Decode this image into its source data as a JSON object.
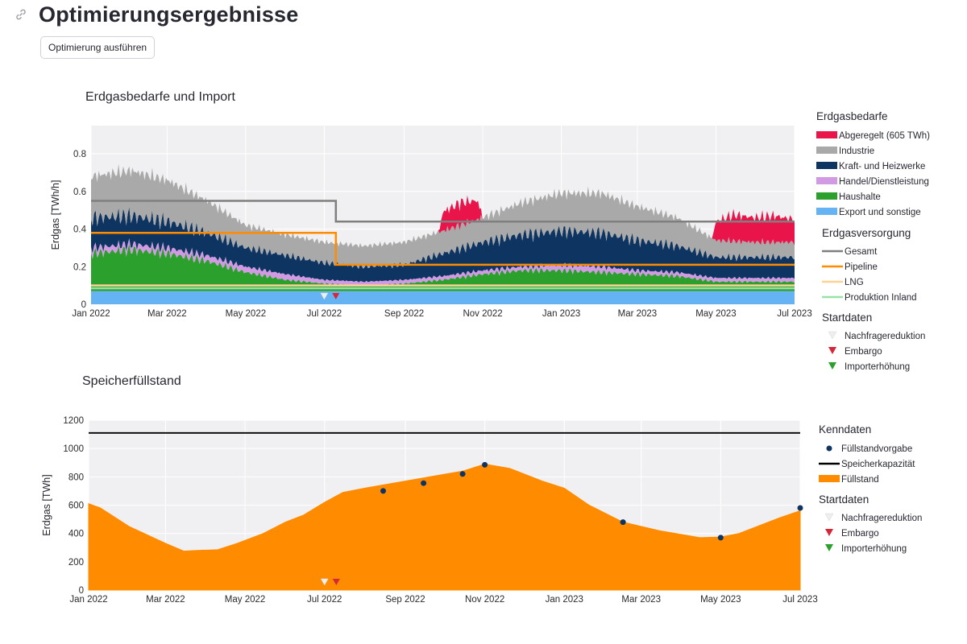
{
  "page": {
    "title": "Optimierungsergebnisse",
    "button_label": "Optimierung ausführen"
  },
  "chart_data": [
    {
      "type": "area",
      "title": "Erdgasbedarfe und Import",
      "ylabel": "Erdgas [TWh/h]",
      "xlabel": "",
      "x_ticks": [
        "Jan 2022",
        "Mar 2022",
        "May 2022",
        "Jul 2022",
        "Sep 2022",
        "Nov 2022",
        "Jan 2023",
        "Mar 2023",
        "May 2023",
        "Jul 2023"
      ],
      "x_range": [
        "2022-01-01",
        "2023-07-01"
      ],
      "y_ticks": [
        0,
        0.2,
        0.4,
        0.6,
        0.8
      ],
      "ylim": [
        0,
        0.95
      ],
      "grid": true,
      "legend_position": "right",
      "demand_group_title": "Erdgasbedarfe",
      "demand_series": [
        {
          "name": "Export und sonstige",
          "color": "#66b3f3",
          "x": [
            "2022-01-01",
            "2023-07-01"
          ],
          "values": [
            0.07,
            0.07
          ]
        },
        {
          "name": "Haushalte",
          "color": "#2ca02c",
          "x": [
            "2022-01-01",
            "2022-02-01",
            "2022-03-01",
            "2022-04-01",
            "2022-05-01",
            "2022-06-01",
            "2022-07-01",
            "2022-08-01",
            "2022-09-01",
            "2022-10-01",
            "2022-11-01",
            "2022-12-01",
            "2023-01-01",
            "2023-02-01",
            "2023-03-01",
            "2023-04-01",
            "2023-05-01",
            "2023-06-01",
            "2023-07-01"
          ],
          "values": [
            0.2,
            0.22,
            0.2,
            0.16,
            0.1,
            0.06,
            0.04,
            0.03,
            0.04,
            0.06,
            0.09,
            0.11,
            0.11,
            0.1,
            0.09,
            0.08,
            0.05,
            0.05,
            0.05
          ]
        },
        {
          "name": "Handel/Dienstleistung",
          "color": "#d19ae3",
          "x": [
            "2022-01-01",
            "2022-02-01",
            "2022-03-01",
            "2022-04-01",
            "2022-05-01",
            "2022-06-01",
            "2022-07-01",
            "2022-08-01",
            "2022-09-01",
            "2022-10-01",
            "2022-11-01",
            "2022-12-01",
            "2023-01-01",
            "2023-02-01",
            "2023-03-01",
            "2023-04-01",
            "2023-05-01",
            "2023-06-01",
            "2023-07-01"
          ],
          "values": [
            0.03,
            0.03,
            0.03,
            0.03,
            0.03,
            0.03,
            0.02,
            0.02,
            0.02,
            0.02,
            0.02,
            0.02,
            0.03,
            0.03,
            0.02,
            0.02,
            0.02,
            0.02,
            0.02
          ]
        },
        {
          "name": "Kraft- und Heizwerke",
          "color": "#0e3461",
          "x": [
            "2022-01-01",
            "2022-02-01",
            "2022-03-01",
            "2022-04-01",
            "2022-05-01",
            "2022-06-01",
            "2022-07-01",
            "2022-08-01",
            "2022-09-01",
            "2022-10-01",
            "2022-11-01",
            "2022-12-01",
            "2023-01-01",
            "2023-02-01",
            "2023-03-01",
            "2023-04-01",
            "2023-05-01",
            "2023-06-01",
            "2023-07-01"
          ],
          "values": [
            0.16,
            0.15,
            0.14,
            0.12,
            0.1,
            0.1,
            0.09,
            0.08,
            0.08,
            0.12,
            0.15,
            0.17,
            0.18,
            0.18,
            0.16,
            0.14,
            0.11,
            0.11,
            0.11
          ]
        },
        {
          "name": "Industrie",
          "color": "#a9a9a9",
          "x": [
            "2022-01-01",
            "2022-02-01",
            "2022-03-01",
            "2022-04-01",
            "2022-05-01",
            "2022-06-01",
            "2022-07-01",
            "2022-08-01",
            "2022-09-01",
            "2022-10-01",
            "2022-11-01",
            "2022-12-01",
            "2023-01-01",
            "2023-02-01",
            "2023-03-01",
            "2023-04-01",
            "2023-05-01",
            "2023-06-01",
            "2023-07-01"
          ],
          "values": [
            0.22,
            0.24,
            0.22,
            0.17,
            0.12,
            0.11,
            0.11,
            0.11,
            0.12,
            0.12,
            0.13,
            0.17,
            0.2,
            0.21,
            0.18,
            0.15,
            0.09,
            0.08,
            0.08
          ]
        },
        {
          "name": "Abgeregelt (605 TWh)",
          "color": "#e8144a",
          "x": [
            "2022-01-01",
            "2022-09-28",
            "2022-10-01",
            "2022-10-15",
            "2022-10-28",
            "2022-11-01",
            "2023-04-28",
            "2023-05-01",
            "2023-05-15",
            "2023-06-01",
            "2023-06-15",
            "2023-07-01"
          ],
          "values": [
            0,
            0,
            0.1,
            0.12,
            0.1,
            0,
            0,
            0.1,
            0.14,
            0.13,
            0.14,
            0.12
          ]
        }
      ],
      "supply_group_title": "Erdgasversorgung",
      "supply_series": [
        {
          "name": "Gesamt",
          "color": "#7f7f7f",
          "x": [
            "2022-01-01",
            "2022-07-10",
            "2022-07-10",
            "2023-07-01"
          ],
          "values": [
            0.55,
            0.55,
            0.44,
            0.44
          ]
        },
        {
          "name": "Pipeline",
          "color": "#ff8c00",
          "x": [
            "2022-01-01",
            "2022-07-10",
            "2022-07-10",
            "2023-07-01"
          ],
          "values": [
            0.38,
            0.38,
            0.21,
            0.21
          ]
        },
        {
          "name": "LNG",
          "color": "#fdd295",
          "x": [
            "2022-01-01",
            "2022-07-10",
            "2022-07-10",
            "2023-07-01"
          ],
          "values": [
            0.1,
            0.1,
            0.1,
            0.1
          ]
        },
        {
          "name": "Produktion Inland",
          "color": "#98e2a8",
          "x": [
            "2022-01-01",
            "2023-07-01"
          ],
          "values": [
            0.085,
            0.085
          ]
        }
      ],
      "start_group_title": "Startdaten",
      "start_markers": [
        {
          "name": "Nachfragereduktion",
          "color": "#eeeeee",
          "x": "2022-07-01"
        },
        {
          "name": "Embargo",
          "color": "#d62739",
          "x": "2022-07-10"
        },
        {
          "name": "Importerhöhung",
          "color": "#2ca02c",
          "x": null
        }
      ]
    },
    {
      "type": "area",
      "title": "Speicherfüllstand",
      "ylabel": "Erdgas [TWh]",
      "xlabel": "",
      "x_ticks": [
        "Jan 2022",
        "Mar 2022",
        "May 2022",
        "Jul 2022",
        "Sep 2022",
        "Nov 2022",
        "Jan 2023",
        "Mar 2023",
        "May 2023",
        "Jul 2023"
      ],
      "x_range": [
        "2022-01-01",
        "2023-07-01"
      ],
      "y_ticks": [
        0,
        200,
        400,
        600,
        800,
        1000,
        1200
      ],
      "ylim": [
        0,
        1200
      ],
      "grid": true,
      "legend_position": "right",
      "kenndaten_group_title": "Kenndaten",
      "fill_series": {
        "name": "Füllstand",
        "color": "#ff8c00",
        "x": [
          "2022-01-01",
          "2022-01-10",
          "2022-02-01",
          "2022-03-01",
          "2022-03-15",
          "2022-03-25",
          "2022-04-10",
          "2022-04-25",
          "2022-05-15",
          "2022-06-01",
          "2022-06-15",
          "2022-07-01",
          "2022-07-15",
          "2022-08-01",
          "2022-09-01",
          "2022-09-20",
          "2022-10-15",
          "2022-11-01",
          "2022-11-20",
          "2022-12-15",
          "2023-01-01",
          "2023-01-20",
          "2023-02-15",
          "2023-03-15",
          "2023-04-15",
          "2023-05-01",
          "2023-05-15",
          "2023-06-01",
          "2023-06-15",
          "2023-07-01"
        ],
        "values": [
          610,
          580,
          450,
          330,
          275,
          280,
          285,
          330,
          400,
          480,
          530,
          620,
          690,
          720,
          770,
          800,
          840,
          890,
          860,
          770,
          720,
          600,
          480,
          420,
          370,
          375,
          400,
          460,
          510,
          560
        ]
      },
      "capacity": {
        "name": "Speicherkapazität",
        "color": "#000000",
        "value": 1110
      },
      "targets": {
        "name": "Füllstandvorgabe",
        "color": "#0e3461",
        "x": [
          "2022-08-15",
          "2022-09-15",
          "2022-10-15",
          "2022-11-01",
          "2023-02-15",
          "2023-05-01",
          "2023-07-01"
        ],
        "values": [
          700,
          755,
          820,
          885,
          480,
          370,
          580
        ]
      },
      "start_group_title": "Startdaten",
      "start_markers": [
        {
          "name": "Nachfragereduktion",
          "color": "#eeeeee",
          "x": "2022-07-01"
        },
        {
          "name": "Embargo",
          "color": "#d62739",
          "x": "2022-07-10"
        },
        {
          "name": "Importerhöhung",
          "color": "#2ca02c",
          "x": null
        }
      ]
    }
  ]
}
